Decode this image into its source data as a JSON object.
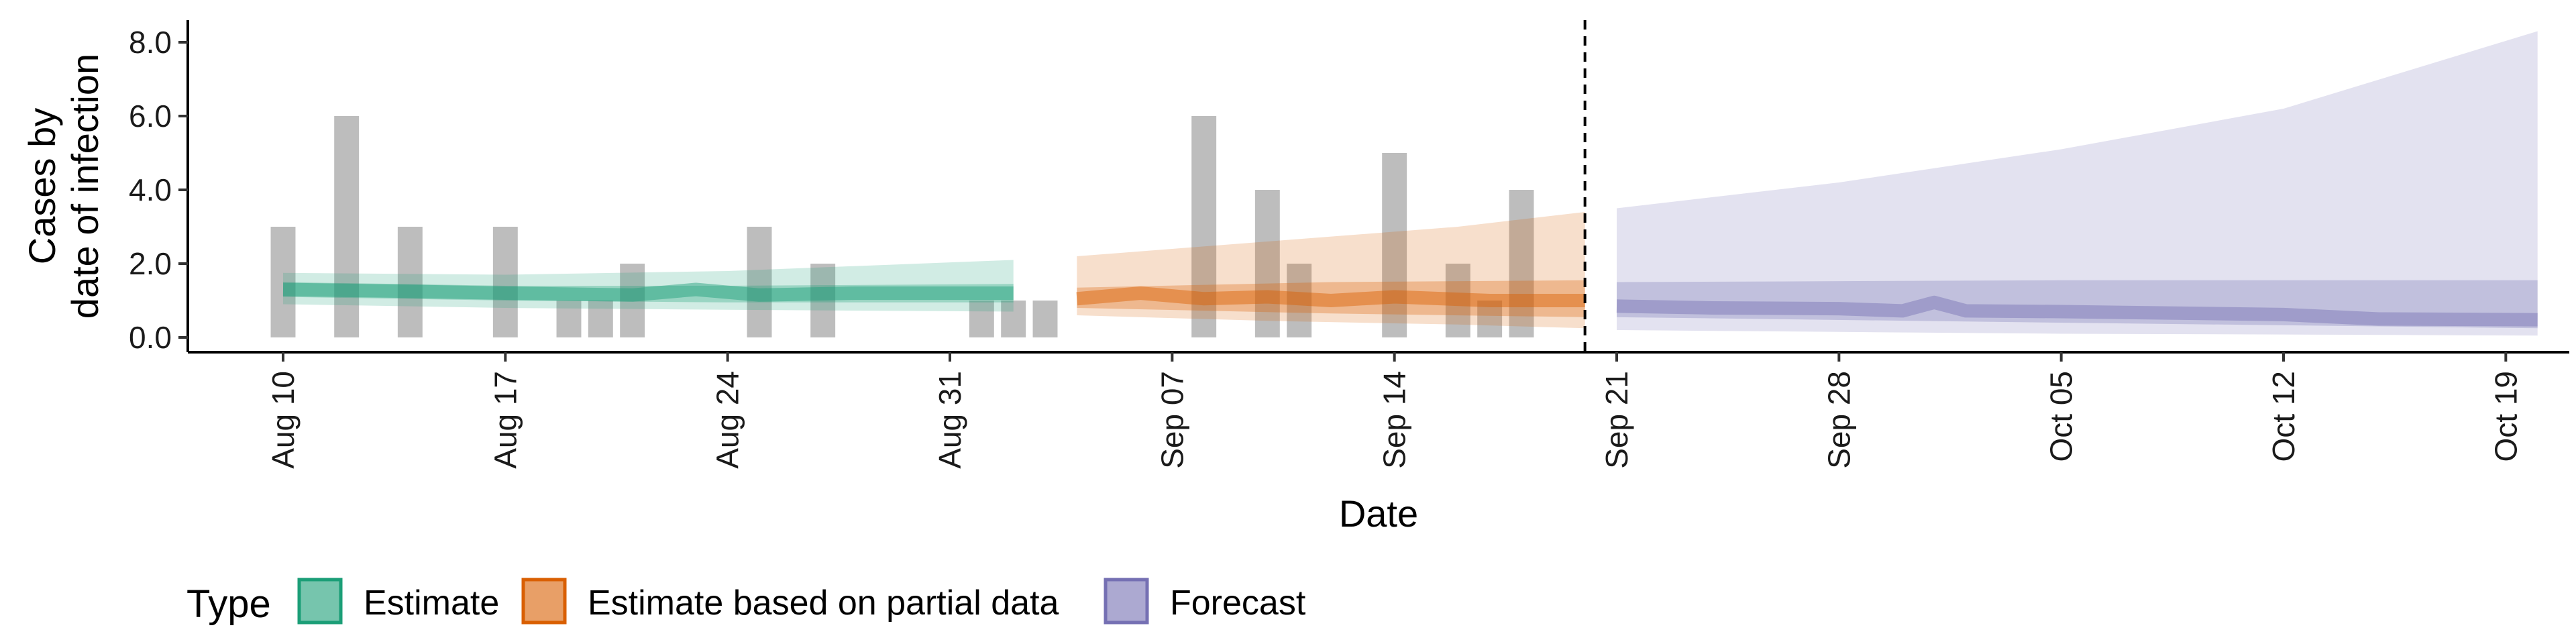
{
  "chart_data": {
    "type": "area",
    "xlabel": "Date",
    "ylabel_lines": [
      "Cases by",
      "date of infection"
    ],
    "x_start": "2020-08-07",
    "x_end": "2020-10-21",
    "ylim": [
      -0.4,
      8.6
    ],
    "y_ticks": [
      "0.0",
      "2.0",
      "4.0",
      "6.0",
      "8.0"
    ],
    "y_tick_values": [
      0,
      2,
      4,
      6,
      8
    ],
    "x_ticks": [
      {
        "date": "2020-08-10",
        "label": "Aug 10"
      },
      {
        "date": "2020-08-17",
        "label": "Aug 17"
      },
      {
        "date": "2020-08-24",
        "label": "Aug 24"
      },
      {
        "date": "2020-08-31",
        "label": "Aug 31"
      },
      {
        "date": "2020-09-07",
        "label": "Sep 07"
      },
      {
        "date": "2020-09-14",
        "label": "Sep 14"
      },
      {
        "date": "2020-09-21",
        "label": "Sep 21"
      },
      {
        "date": "2020-09-28",
        "label": "Sep 28"
      },
      {
        "date": "2020-10-05",
        "label": "Oct 05"
      },
      {
        "date": "2020-10-12",
        "label": "Oct 12"
      },
      {
        "date": "2020-10-19",
        "label": "Oct 19"
      }
    ],
    "forecast_line_date": "2020-09-20",
    "bar_color": "#bdbdbd",
    "observed_cases": [
      {
        "date": "2020-08-10",
        "value": 3
      },
      {
        "date": "2020-08-12",
        "value": 6
      },
      {
        "date": "2020-08-14",
        "value": 3
      },
      {
        "date": "2020-08-17",
        "value": 3
      },
      {
        "date": "2020-08-19",
        "value": 1
      },
      {
        "date": "2020-08-20",
        "value": 1
      },
      {
        "date": "2020-08-21",
        "value": 2
      },
      {
        "date": "2020-08-25",
        "value": 3
      },
      {
        "date": "2020-08-27",
        "value": 2
      },
      {
        "date": "2020-09-01",
        "value": 1
      },
      {
        "date": "2020-09-02",
        "value": 1
      },
      {
        "date": "2020-09-03",
        "value": 1
      },
      {
        "date": "2020-09-08",
        "value": 6
      },
      {
        "date": "2020-09-10",
        "value": 4
      },
      {
        "date": "2020-09-11",
        "value": 2
      },
      {
        "date": "2020-09-14",
        "value": 5
      },
      {
        "date": "2020-09-16",
        "value": 2
      },
      {
        "date": "2020-09-17",
        "value": 1
      },
      {
        "date": "2020-09-18",
        "value": 4
      }
    ],
    "series": [
      {
        "name": "Estimate",
        "color": "#1b9e77",
        "median": [
          {
            "date": "2020-08-10",
            "value": 1.3
          },
          {
            "date": "2020-08-14",
            "value": 1.25
          },
          {
            "date": "2020-08-17",
            "value": 1.2
          },
          {
            "date": "2020-08-21",
            "value": 1.15
          },
          {
            "date": "2020-08-23",
            "value": 1.3
          },
          {
            "date": "2020-08-25",
            "value": 1.15
          },
          {
            "date": "2020-08-28",
            "value": 1.2
          },
          {
            "date": "2020-09-02",
            "value": 1.2
          }
        ],
        "inner": [
          {
            "date": "2020-08-10",
            "lower": 1.1,
            "upper": 1.5
          },
          {
            "date": "2020-08-17",
            "lower": 1.0,
            "upper": 1.4
          },
          {
            "date": "2020-08-24",
            "lower": 0.95,
            "upper": 1.4
          },
          {
            "date": "2020-09-02",
            "lower": 0.95,
            "upper": 1.45
          }
        ],
        "outer": [
          {
            "date": "2020-08-10",
            "lower": 0.9,
            "upper": 1.75
          },
          {
            "date": "2020-08-17",
            "lower": 0.8,
            "upper": 1.7
          },
          {
            "date": "2020-08-24",
            "lower": 0.75,
            "upper": 1.8
          },
          {
            "date": "2020-09-02",
            "lower": 0.7,
            "upper": 2.1
          }
        ]
      },
      {
        "name": "Estimate based on partial data",
        "color": "#d95f02",
        "median": [
          {
            "date": "2020-09-04",
            "value": 1.05
          },
          {
            "date": "2020-09-06",
            "value": 1.2
          },
          {
            "date": "2020-09-08",
            "value": 1.05
          },
          {
            "date": "2020-09-10",
            "value": 1.1
          },
          {
            "date": "2020-09-12",
            "value": 1.0
          },
          {
            "date": "2020-09-14",
            "value": 1.1
          },
          {
            "date": "2020-09-17",
            "value": 1.0
          },
          {
            "date": "2020-09-20",
            "value": 1.0
          }
        ],
        "inner": [
          {
            "date": "2020-09-04",
            "lower": 0.8,
            "upper": 1.35
          },
          {
            "date": "2020-09-12",
            "lower": 0.65,
            "upper": 1.5
          },
          {
            "date": "2020-09-20",
            "lower": 0.55,
            "upper": 1.55
          }
        ],
        "outer": [
          {
            "date": "2020-09-04",
            "lower": 0.6,
            "upper": 2.2
          },
          {
            "date": "2020-09-10",
            "lower": 0.45,
            "upper": 2.6
          },
          {
            "date": "2020-09-16",
            "lower": 0.35,
            "upper": 3.0
          },
          {
            "date": "2020-09-20",
            "lower": 0.25,
            "upper": 3.4
          }
        ]
      },
      {
        "name": "Forecast",
        "color": "#7570b3",
        "median": [
          {
            "date": "2020-09-21",
            "value": 0.85
          },
          {
            "date": "2020-09-24",
            "value": 0.8
          },
          {
            "date": "2020-09-28",
            "value": 0.78
          },
          {
            "date": "2020-09-30",
            "value": 0.72
          },
          {
            "date": "2020-10-01",
            "value": 0.95
          },
          {
            "date": "2020-10-02",
            "value": 0.72
          },
          {
            "date": "2020-10-05",
            "value": 0.7
          },
          {
            "date": "2020-10-12",
            "value": 0.62
          },
          {
            "date": "2020-10-15",
            "value": 0.5
          },
          {
            "date": "2020-10-20",
            "value": 0.48
          }
        ],
        "inner": [
          {
            "date": "2020-09-21",
            "lower": 0.55,
            "upper": 1.5
          },
          {
            "date": "2020-10-05",
            "lower": 0.4,
            "upper": 1.55
          },
          {
            "date": "2020-10-20",
            "lower": 0.25,
            "upper": 1.55
          }
        ],
        "outer": [
          {
            "date": "2020-09-21",
            "lower": 0.2,
            "upper": 3.5
          },
          {
            "date": "2020-09-28",
            "lower": 0.15,
            "upper": 4.2
          },
          {
            "date": "2020-10-05",
            "lower": 0.1,
            "upper": 5.1
          },
          {
            "date": "2020-10-12",
            "lower": 0.08,
            "upper": 6.2
          },
          {
            "date": "2020-10-20",
            "lower": 0.05,
            "upper": 8.3
          }
        ]
      }
    ],
    "legend": {
      "title": "Type",
      "position": "bottom",
      "entries": [
        "Estimate",
        "Estimate based on partial data",
        "Forecast"
      ]
    }
  }
}
